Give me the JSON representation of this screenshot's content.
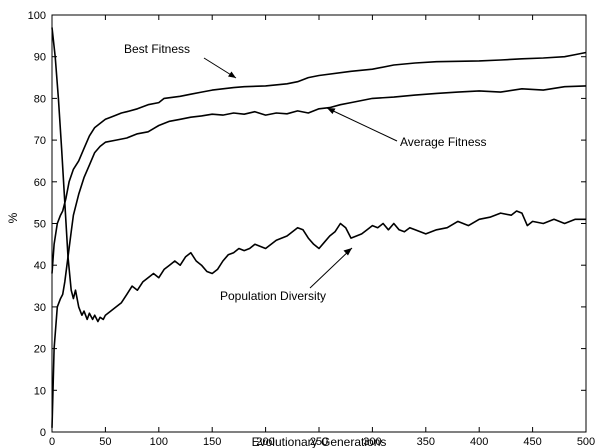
{
  "chart_data": {
    "type": "line",
    "title": "",
    "xlabel": "Evolutionary Generations",
    "ylabel": "%",
    "xlim": [
      0,
      500
    ],
    "ylim": [
      0,
      100
    ],
    "xticks": [
      0,
      50,
      100,
      150,
      200,
      250,
      300,
      350,
      400,
      450,
      500
    ],
    "yticks": [
      0,
      10,
      20,
      30,
      40,
      50,
      60,
      70,
      80,
      90,
      100
    ],
    "grid": false,
    "legend": "none",
    "series": [
      {
        "name": "Best Fitness",
        "x": [
          0,
          2,
          5,
          8,
          10,
          13,
          16,
          20,
          25,
          30,
          35,
          40,
          45,
          50,
          55,
          60,
          65,
          70,
          80,
          90,
          100,
          105,
          120,
          130,
          140,
          150,
          160,
          170,
          180,
          200,
          220,
          230,
          240,
          250,
          280,
          300,
          320,
          340,
          360,
          400,
          420,
          440,
          460,
          480,
          490,
          500
        ],
        "y": [
          38,
          45,
          50,
          52,
          53,
          56,
          60,
          63,
          65,
          68,
          71,
          73,
          74,
          75,
          75.5,
          76,
          76.5,
          76.8,
          77.5,
          78.5,
          79,
          80,
          80.5,
          81,
          81.5,
          82,
          82.3,
          82.6,
          82.8,
          83,
          83.5,
          84,
          85,
          85.5,
          86.5,
          87,
          88,
          88.5,
          88.8,
          89,
          89.2,
          89.5,
          89.7,
          90,
          90.5,
          91
        ]
      },
      {
        "name": "Average Fitness",
        "x": [
          0,
          2,
          5,
          8,
          10,
          12,
          15,
          18,
          20,
          25,
          30,
          35,
          40,
          45,
          50,
          60,
          70,
          80,
          90,
          100,
          110,
          120,
          130,
          140,
          150,
          160,
          170,
          180,
          190,
          200,
          210,
          220,
          230,
          240,
          250,
          260,
          270,
          280,
          290,
          300,
          320,
          340,
          360,
          380,
          400,
          420,
          440,
          460,
          480,
          500
        ],
        "y": [
          1,
          20,
          30,
          32,
          33,
          36,
          42,
          48,
          52,
          57,
          61,
          64,
          67,
          68.5,
          69.5,
          70,
          70.5,
          71.5,
          72,
          73.5,
          74.5,
          75,
          75.5,
          75.8,
          76.2,
          76,
          76.5,
          76.2,
          76.8,
          76,
          76.5,
          76.3,
          77,
          76.5,
          77.5,
          77.8,
          78.5,
          79,
          79.5,
          80,
          80.3,
          80.8,
          81.2,
          81.5,
          81.8,
          81.5,
          82.3,
          82,
          82.8,
          83
        ]
      },
      {
        "name": "Population Diversity",
        "x": [
          0,
          3,
          6,
          9,
          12,
          15,
          18,
          20,
          22,
          25,
          28,
          30,
          33,
          35,
          38,
          40,
          43,
          45,
          48,
          50,
          55,
          60,
          65,
          70,
          75,
          80,
          85,
          90,
          95,
          100,
          105,
          110,
          115,
          120,
          125,
          130,
          135,
          140,
          145,
          150,
          155,
          160,
          165,
          170,
          175,
          180,
          185,
          190,
          200,
          210,
          220,
          230,
          235,
          240,
          245,
          250,
          255,
          260,
          265,
          270,
          275,
          280,
          285,
          290,
          295,
          300,
          305,
          310,
          315,
          320,
          325,
          330,
          335,
          340,
          350,
          360,
          370,
          380,
          390,
          400,
          410,
          420,
          430,
          435,
          440,
          445,
          450,
          460,
          470,
          480,
          490,
          500
        ],
        "y": [
          97,
          90,
          80,
          68,
          55,
          42,
          34,
          32,
          34,
          30,
          28,
          29,
          27,
          28.5,
          27,
          28,
          26.5,
          27.5,
          27,
          28,
          29,
          30,
          31,
          33,
          35,
          34,
          36,
          37,
          38,
          37,
          39,
          40,
          41,
          40,
          42,
          43,
          41,
          40,
          38.5,
          38,
          39,
          41,
          42.5,
          43,
          44,
          43.5,
          44,
          45,
          44,
          46,
          47,
          49,
          48.5,
          46.5,
          45,
          44,
          45.5,
          47,
          48,
          50,
          49,
          46.5,
          47,
          47.5,
          48.5,
          49.5,
          49,
          50,
          48.5,
          50,
          48.5,
          48,
          49,
          48.5,
          47.5,
          48.5,
          49,
          50.5,
          49.5,
          51,
          51.5,
          52.5,
          52,
          53,
          52.5,
          49.5,
          50.5,
          50,
          51,
          50,
          51,
          51
        ]
      }
    ],
    "annotations": [
      {
        "text": "Best Fitness",
        "series": "Best Fitness"
      },
      {
        "text": "Average Fitness",
        "series": "Average Fitness"
      },
      {
        "text": "Population Diversity",
        "series": "Population Diversity"
      }
    ]
  }
}
